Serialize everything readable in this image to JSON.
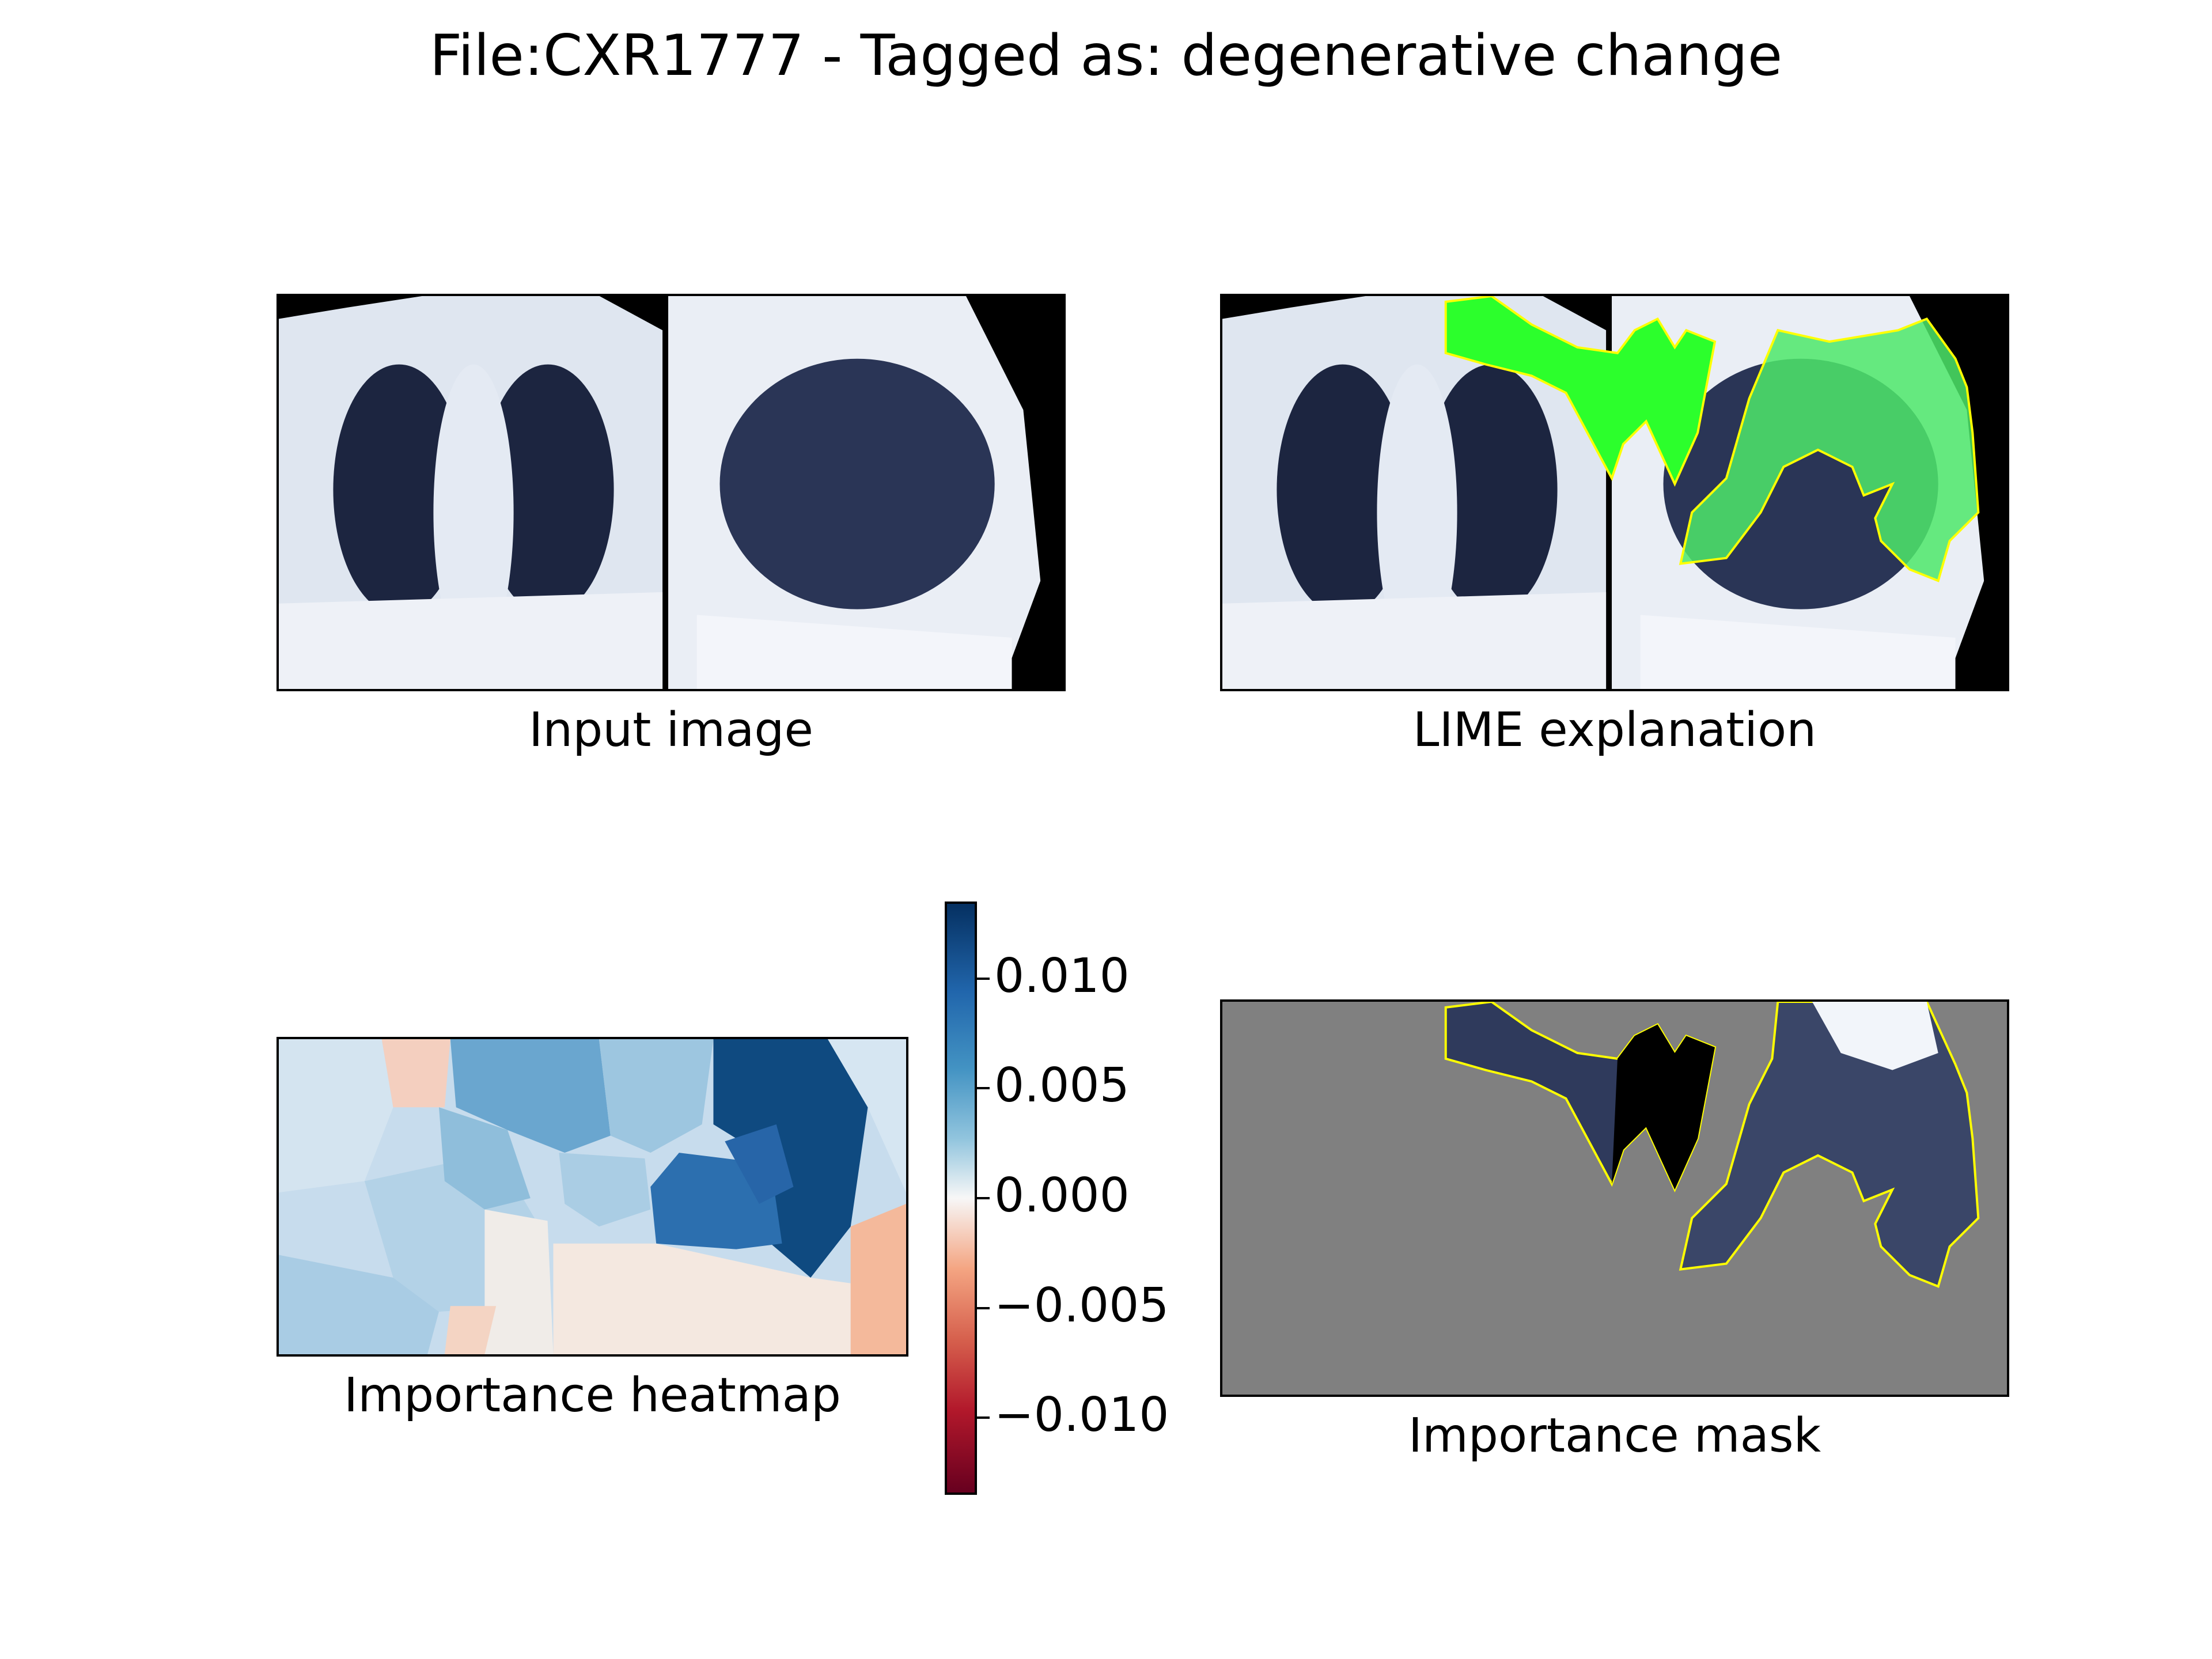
{
  "figure": {
    "title": "File:CXR1777 - Tagged as: degenerative change"
  },
  "panels": {
    "input": {
      "caption": "Input image"
    },
    "lime": {
      "caption": "LIME explanation"
    },
    "heatmap": {
      "caption": "Importance heatmap"
    },
    "mask": {
      "caption": "Importance mask"
    }
  },
  "colorbar": {
    "range": [
      -0.0135,
      0.0135
    ],
    "ticks": [
      {
        "value": 0.01,
        "label": "0.010"
      },
      {
        "value": 0.005,
        "label": "0.005"
      },
      {
        "value": 0.0,
        "label": "0.000"
      },
      {
        "value": -0.005,
        "label": "−0.005"
      },
      {
        "value": -0.01,
        "label": "−0.010"
      }
    ],
    "colors": [
      "#67001f",
      "#d6604d",
      "#f7f7f7",
      "#4393c3",
      "#053061"
    ]
  },
  "colors": {
    "highlight": "#00ff00",
    "boundary": "#ffff00",
    "mask_background": "#808080"
  }
}
